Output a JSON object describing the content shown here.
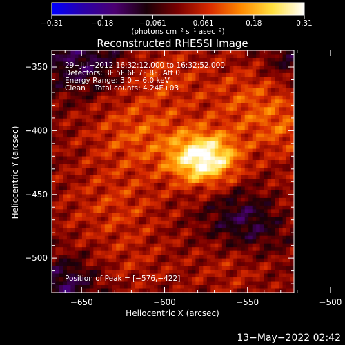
{
  "chart_data": {
    "type": "heatmap",
    "title": "Reconstructed RHESSI Image",
    "xlabel": "Heliocentric X (arcsec)",
    "ylabel": "Heliocentric Y (arcsec)",
    "xlim": [
      -668,
      -522
    ],
    "ylim": [
      -527,
      -337
    ],
    "x_ticks": [
      -650,
      -600,
      -550,
      -500
    ],
    "y_ticks": [
      -350,
      -400,
      -450,
      -500
    ],
    "x_tick_labels": [
      "−650",
      "−600",
      "−550",
      "−500"
    ],
    "y_tick_labels": [
      "−350",
      "−400",
      "−450",
      "−500"
    ],
    "colorbar": {
      "range": [
        -0.31,
        0.31
      ],
      "tick_labels": [
        "−0.31",
        "−0.18",
        "−0.061",
        "0.061",
        "0.18",
        "0.31"
      ],
      "unit_label": "(photons cm⁻² s⁻¹ asec⁻²)",
      "colors": [
        "#0000ff",
        "#2a00a8",
        "#4b0070",
        "#1a0008",
        "#7a0000",
        "#d82a00",
        "#ff8a00",
        "#ffe040",
        "#ffffff"
      ]
    },
    "annotations": [
      "29−Jul−2012 16:32:12.000 to 16:32:52.000",
      "Detectors: 3F 5F 6F 7F 8F, Att 0",
      "Energy Range: 3.0 − 6.0 keV",
      "Clean    Total counts: 4.24E+03"
    ],
    "peak_label": "Position of Peak = [−576,−422]",
    "peak": {
      "x": -576,
      "y": -422,
      "value": 0.31
    },
    "sources": [
      {
        "x": -576,
        "y": -422,
        "sigma": 14,
        "amp": 0.31
      },
      {
        "x": -615,
        "y": -402,
        "sigma": 22,
        "amp": 0.1
      },
      {
        "x": -548,
        "y": -375,
        "sigma": 20,
        "amp": 0.09
      },
      {
        "x": -528,
        "y": -400,
        "sigma": 16,
        "amp": 0.08
      },
      {
        "x": -600,
        "y": -355,
        "sigma": 18,
        "amp": 0.06
      },
      {
        "x": -630,
        "y": -460,
        "sigma": 22,
        "amp": 0.07
      },
      {
        "x": -530,
        "y": -460,
        "sigma": 18,
        "amp": 0.06
      },
      {
        "x": -560,
        "y": -505,
        "sigma": 18,
        "amp": 0.05
      },
      {
        "x": -620,
        "y": -505,
        "sigma": 16,
        "amp": 0.04
      }
    ],
    "negatives": [
      {
        "x": -650,
        "y": -345,
        "sigma": 18,
        "amp": -0.12
      },
      {
        "x": -548,
        "y": -470,
        "sigma": 18,
        "amp": -0.14
      },
      {
        "x": -660,
        "y": -520,
        "sigma": 14,
        "amp": -0.12
      },
      {
        "x": -525,
        "y": -345,
        "sigma": 12,
        "amp": -0.08
      }
    ]
  },
  "footer": {
    "timestamp": "13−May−2022 02:42"
  }
}
